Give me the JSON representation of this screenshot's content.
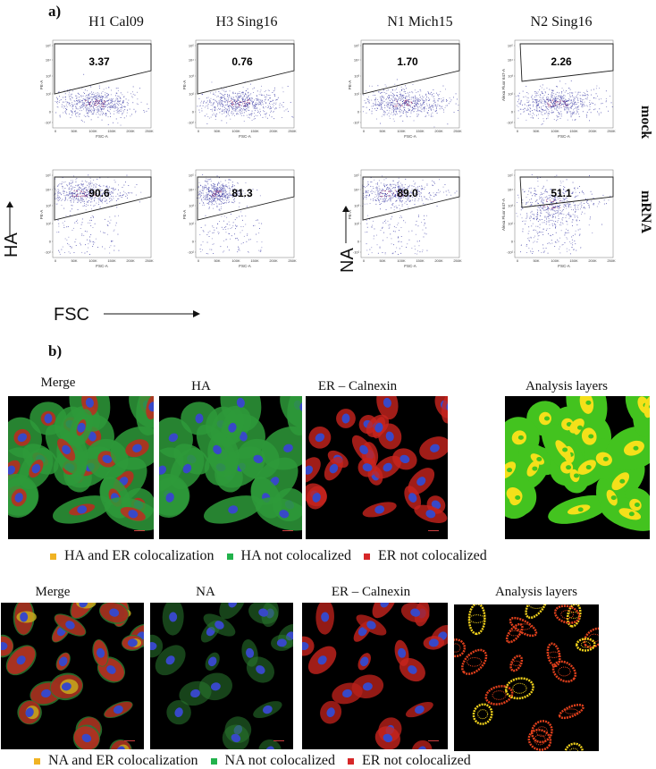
{
  "panel_a": {
    "letter": "a)",
    "columns": [
      "H1 Cal09",
      "H3 Sing16",
      "N1 Mich15",
      "N2 Sing16"
    ],
    "row_labels": [
      "mock",
      "mRNA"
    ],
    "y_axis_left": "HA",
    "y_axis_right": "NA",
    "x_axis_big": "FSC",
    "plots": [
      {
        "id": "h1-mock",
        "value": "3.37",
        "ylabel": "PE-A",
        "xlabel": "FSC-A",
        "pop": "mock"
      },
      {
        "id": "h3-mock",
        "value": "0.76",
        "ylabel": "PE-A",
        "xlabel": "FSC-A",
        "pop": "mock"
      },
      {
        "id": "n1-mock",
        "value": "1.70",
        "ylabel": "PE-A",
        "xlabel": "FSC-A",
        "pop": "mock"
      },
      {
        "id": "n2-mock",
        "value": "2.26",
        "ylabel": "Alexa Fluor 647-A",
        "xlabel": "FSC-A",
        "pop": "mock"
      },
      {
        "id": "h1-mrna",
        "value": "90.6",
        "ylabel": "PE-A",
        "xlabel": "FSC-A",
        "pop": "high"
      },
      {
        "id": "h3-mrna",
        "value": "81.3",
        "ylabel": "PE-A",
        "xlabel": "FSC-A",
        "pop": "high"
      },
      {
        "id": "n1-mrna",
        "value": "89.0",
        "ylabel": "PE-A",
        "xlabel": "FSC-A",
        "pop": "high"
      },
      {
        "id": "n2-mrna",
        "value": "51.1",
        "ylabel": "Alexa Fluor 647-A",
        "xlabel": "FSC-A",
        "pop": "mid"
      }
    ],
    "y_ticks": [
      "10⁵",
      "10⁴",
      "10³",
      "10²",
      "0",
      "-10²"
    ],
    "x_ticks": [
      "0",
      "50K",
      "100K",
      "150K",
      "200K",
      "250K"
    ]
  },
  "panel_b": {
    "letter": "b)",
    "ha_titles": [
      "Merge",
      "HA",
      "ER – Calnexin",
      "Analysis layers"
    ],
    "na_titles": [
      "Merge",
      "NA",
      "ER – Calnexin",
      "Analysis layers"
    ],
    "ha_legend": [
      {
        "label": "HA and ER colocalization",
        "color": "#f0b323"
      },
      {
        "label": "HA not colocalized",
        "color": "#22b24c"
      },
      {
        "label": "ER not colocalized",
        "color": "#d62728"
      }
    ],
    "na_legend": [
      {
        "label": "NA and ER colocalization",
        "color": "#f0b323"
      },
      {
        "label": "NA not colocalized",
        "color": "#22b24c"
      },
      {
        "label": "ER not colocalized",
        "color": "#d62728"
      }
    ]
  }
}
